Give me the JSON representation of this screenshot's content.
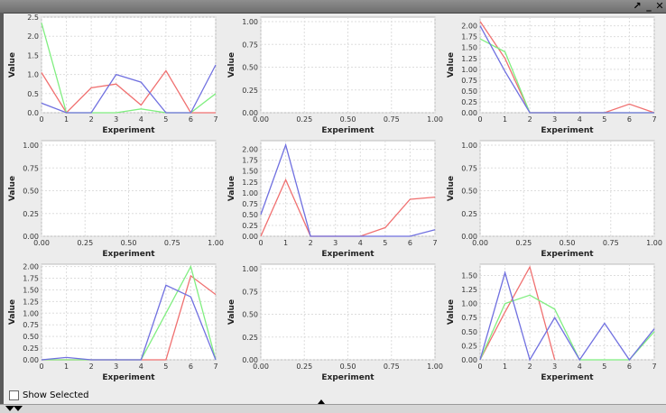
{
  "window": {
    "controls": {
      "maximize": "↗",
      "minimize": "_",
      "close": "✕"
    }
  },
  "footer": {
    "show_selected_label": "Show Selected"
  },
  "colors": {
    "red": "#f07070",
    "green": "#80ee80",
    "blue": "#7070e0",
    "grid": "#dddddd",
    "plot_bg": "#ffffff"
  },
  "chart_data": [
    {
      "type": "line",
      "xlabel": "Experiment",
      "ylabel": "Value",
      "xticks": [
        "0",
        "1",
        "2",
        "3",
        "4",
        "5",
        "6",
        "7"
      ],
      "xlim": [
        0,
        7
      ],
      "yticks": [
        "0.0",
        "0.5",
        "1.0",
        "1.5",
        "2.0",
        "2.5"
      ],
      "ylim": [
        0,
        2.5
      ],
      "series": [
        {
          "color": "red",
          "x": [
            0,
            1,
            2,
            3,
            4,
            5,
            6,
            7
          ],
          "y": [
            1.05,
            0,
            0.65,
            0.75,
            0.2,
            1.1,
            0,
            0
          ]
        },
        {
          "color": "green",
          "x": [
            0,
            1,
            2,
            3,
            4,
            5,
            6,
            7
          ],
          "y": [
            2.35,
            0,
            0,
            0,
            0.1,
            0,
            0,
            0.5
          ]
        },
        {
          "color": "blue",
          "x": [
            0,
            1,
            2,
            3,
            4,
            5,
            6,
            7
          ],
          "y": [
            0.25,
            0,
            0,
            1.0,
            0.8,
            0,
            0,
            1.25
          ]
        }
      ]
    },
    {
      "type": "line",
      "xlabel": "Experiment",
      "ylabel": "Value",
      "xticks": [
        "0.00",
        "0.25",
        "0.50",
        "0.75",
        "1.00"
      ],
      "xlim": [
        0,
        1
      ],
      "yticks": [
        "0.00",
        "0.25",
        "0.50",
        "0.75",
        "1.00"
      ],
      "ylim": [
        0,
        1.05
      ],
      "series": []
    },
    {
      "type": "line",
      "xlabel": "Experiment",
      "ylabel": "Value",
      "xticks": [
        "0",
        "1",
        "2",
        "3",
        "4",
        "5",
        "6",
        "7"
      ],
      "xlim": [
        0,
        7
      ],
      "yticks": [
        "0.00",
        "0.25",
        "0.50",
        "0.75",
        "1.00",
        "1.25",
        "1.50",
        "1.75",
        "2.00"
      ],
      "ylim": [
        0,
        2.2
      ],
      "series": [
        {
          "color": "red",
          "x": [
            0,
            1,
            2,
            3,
            4,
            5,
            6,
            7
          ],
          "y": [
            2.1,
            1.25,
            0,
            0,
            0,
            0,
            0.2,
            0
          ]
        },
        {
          "color": "green",
          "x": [
            0,
            1,
            2,
            3,
            4,
            5,
            6,
            7
          ],
          "y": [
            1.7,
            1.4,
            0,
            0,
            0,
            0,
            0,
            0
          ]
        },
        {
          "color": "blue",
          "x": [
            0,
            1,
            2,
            3,
            4,
            5,
            6,
            7
          ],
          "y": [
            2.0,
            0.95,
            0,
            0,
            0,
            0,
            0,
            0
          ]
        }
      ]
    },
    {
      "type": "line",
      "xlabel": "Experiment",
      "ylabel": "Value",
      "xticks": [
        "0.00",
        "0.25",
        "0.50",
        "0.75",
        "1.00"
      ],
      "xlim": [
        0,
        1
      ],
      "yticks": [
        "0.00",
        "0.25",
        "0.50",
        "0.75",
        "1.00"
      ],
      "ylim": [
        0,
        1.05
      ],
      "series": []
    },
    {
      "type": "line",
      "xlabel": "Experiment",
      "ylabel": "Value",
      "xticks": [
        "0",
        "1",
        "2",
        "3",
        "4",
        "5",
        "6",
        "7"
      ],
      "xlim": [
        0,
        7
      ],
      "yticks": [
        "0.00",
        "0.25",
        "0.50",
        "0.75",
        "1.00",
        "1.25",
        "1.50",
        "1.75",
        "2.00"
      ],
      "ylim": [
        0,
        2.2
      ],
      "series": [
        {
          "color": "red",
          "x": [
            0,
            1,
            2,
            3,
            4,
            5,
            6,
            7
          ],
          "y": [
            0,
            1.3,
            0,
            0,
            0,
            0.2,
            0.85,
            0.9
          ]
        },
        {
          "color": "blue",
          "x": [
            0,
            1,
            2,
            3,
            4,
            5,
            6,
            7
          ],
          "y": [
            0.5,
            2.1,
            0,
            0,
            0,
            0,
            0,
            0.15
          ]
        }
      ]
    },
    {
      "type": "line",
      "xlabel": "Experiment",
      "ylabel": "Value",
      "xticks": [
        "0.00",
        "0.25",
        "0.50",
        "0.75",
        "1.00"
      ],
      "xlim": [
        0,
        1
      ],
      "yticks": [
        "0.00",
        "0.25",
        "0.50",
        "0.75",
        "1.00"
      ],
      "ylim": [
        0,
        1.05
      ],
      "series": []
    },
    {
      "type": "line",
      "xlabel": "Experiment",
      "ylabel": "Value",
      "xticks": [
        "0",
        "1",
        "2",
        "3",
        "4",
        "5",
        "6",
        "7"
      ],
      "xlim": [
        0,
        7
      ],
      "yticks": [
        "0.00",
        "0.25",
        "0.50",
        "0.75",
        "1.00",
        "1.25",
        "1.50",
        "1.75",
        "2.00"
      ],
      "ylim": [
        0,
        2.05
      ],
      "series": [
        {
          "color": "red",
          "x": [
            0,
            1,
            2,
            3,
            4,
            5,
            6,
            7
          ],
          "y": [
            0,
            0,
            0,
            0,
            0,
            0,
            1.8,
            1.4
          ]
        },
        {
          "color": "green",
          "x": [
            0,
            1,
            2,
            3,
            4,
            5,
            6,
            7
          ],
          "y": [
            0,
            0,
            0,
            0,
            0,
            1.0,
            2.0,
            0
          ]
        },
        {
          "color": "blue",
          "x": [
            0,
            1,
            2,
            3,
            4,
            5,
            6,
            7
          ],
          "y": [
            0,
            0.05,
            0,
            0,
            0,
            1.6,
            1.35,
            0
          ]
        }
      ]
    },
    {
      "type": "line",
      "xlabel": "Experiment",
      "ylabel": "Value",
      "xticks": [
        "0.00",
        "0.25",
        "0.50",
        "0.75",
        "1.00"
      ],
      "xlim": [
        0,
        1
      ],
      "yticks": [
        "0.00",
        "0.25",
        "0.50",
        "0.75",
        "1.00"
      ],
      "ylim": [
        0,
        1.05
      ],
      "series": []
    },
    {
      "type": "line",
      "xlabel": "Experiment",
      "ylabel": "Value",
      "xticks": [
        "0",
        "1",
        "2",
        "3",
        "4",
        "5",
        "6",
        "7"
      ],
      "xlim": [
        0,
        7
      ],
      "yticks": [
        "0.00",
        "0.25",
        "0.50",
        "0.75",
        "1.00",
        "1.25",
        "1.50"
      ],
      "ylim": [
        0,
        1.7
      ],
      "series": [
        {
          "color": "red",
          "x": [
            0,
            1,
            2,
            3
          ],
          "y": [
            0,
            0.85,
            1.65,
            0
          ]
        },
        {
          "color": "green",
          "x": [
            0,
            1,
            2,
            3,
            4,
            5,
            6,
            7
          ],
          "y": [
            0,
            1.0,
            1.15,
            0.9,
            0,
            0,
            0,
            0.5
          ]
        },
        {
          "color": "blue",
          "x": [
            0,
            1,
            2,
            3,
            4,
            5,
            6,
            7
          ],
          "y": [
            0,
            1.55,
            0,
            0.75,
            0,
            0.65,
            0,
            0.55
          ]
        }
      ]
    }
  ]
}
